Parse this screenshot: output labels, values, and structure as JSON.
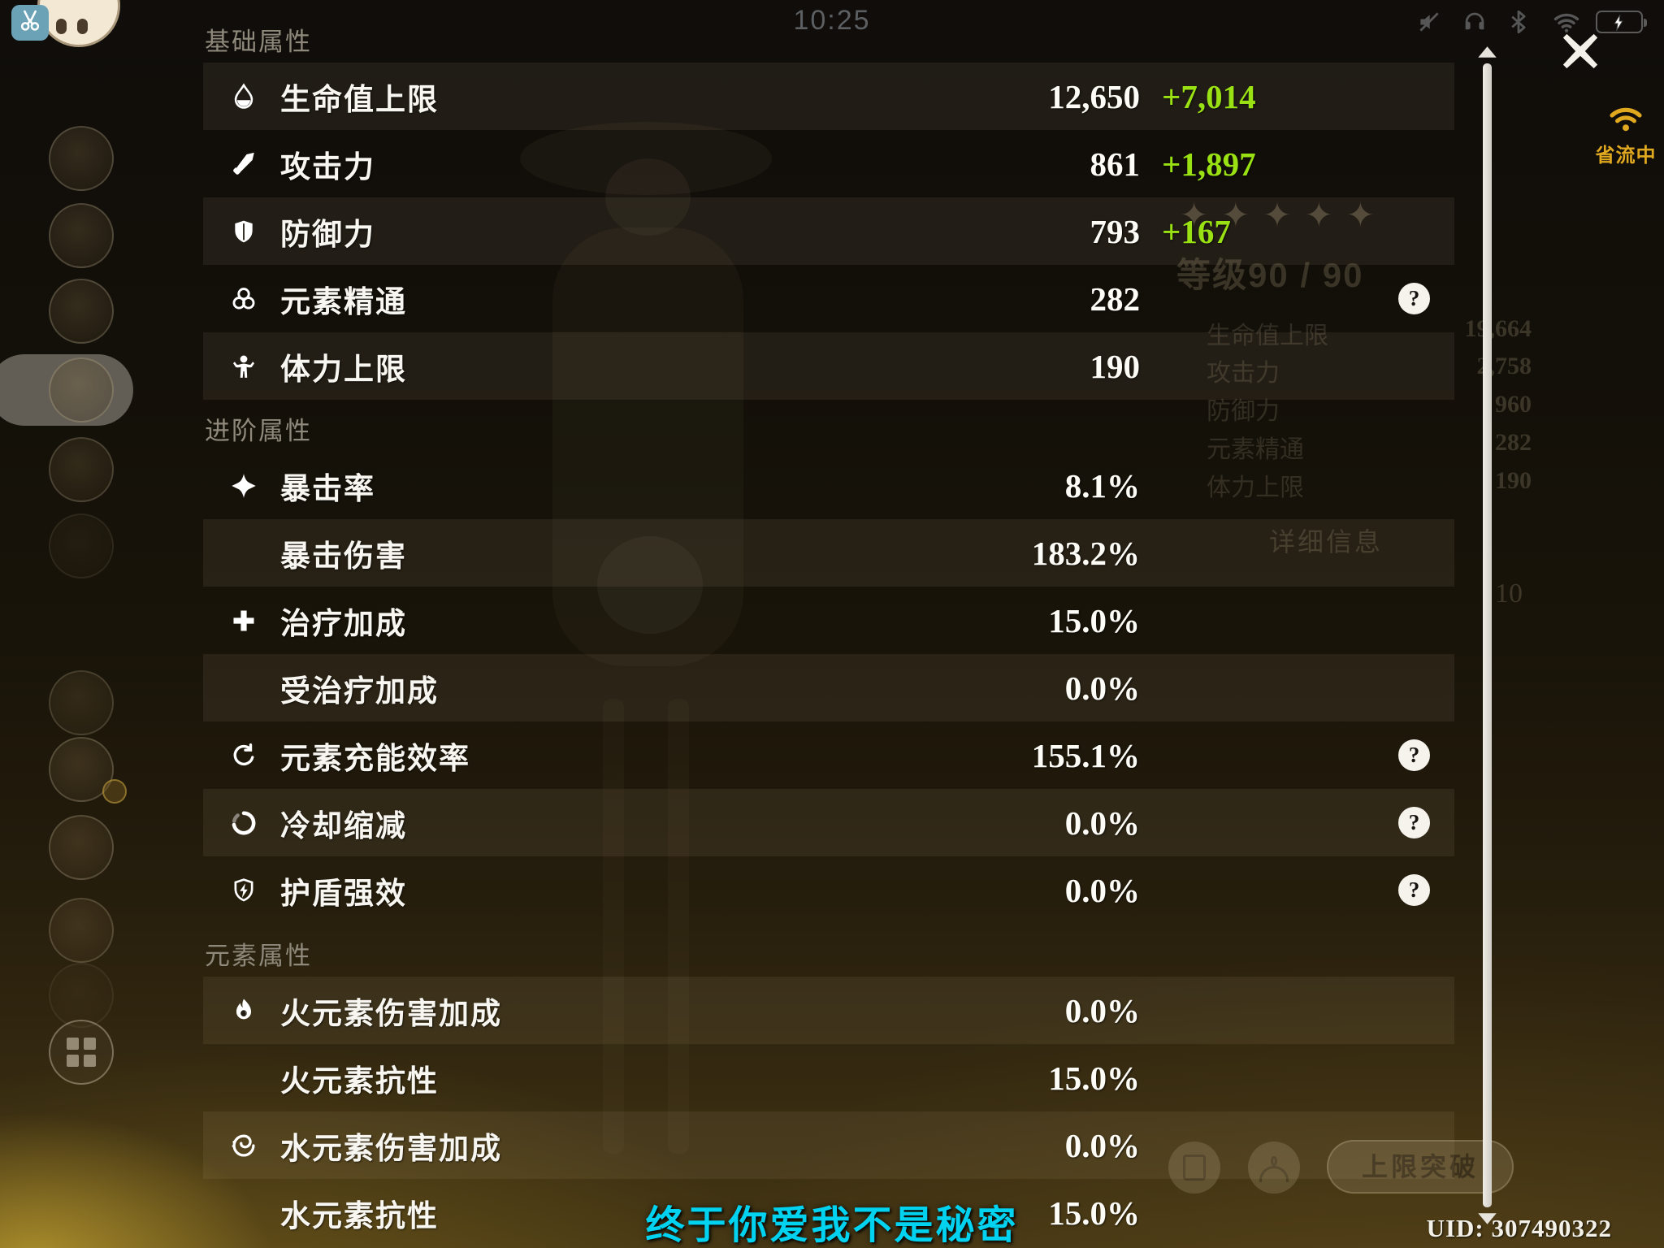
{
  "status_bar": {
    "time": "10:25",
    "icons": [
      "mute-icon",
      "headphones-icon",
      "bluetooth-icon",
      "wifi-icon",
      "battery-icon"
    ]
  },
  "helper_app": {
    "scissors_icon": "scissors-icon",
    "avatar": "floating-assistant-avatar"
  },
  "data_saver": {
    "label": "省流中",
    "icon": "wifi-icon"
  },
  "close_label": "close",
  "stats_panel": {
    "sections": [
      {
        "title": "基础属性",
        "rows": [
          {
            "icon": "hp-icon",
            "label": "生命值上限",
            "value": "12,650",
            "bonus": "+7,014",
            "help": false
          },
          {
            "icon": "atk-icon",
            "label": "攻击力",
            "value": "861",
            "bonus": "+1,897",
            "help": false
          },
          {
            "icon": "def-icon",
            "label": "防御力",
            "value": "793",
            "bonus": "+167",
            "help": false
          },
          {
            "icon": "em-icon",
            "label": "元素精通",
            "value": "282",
            "bonus": "",
            "help": true
          },
          {
            "icon": "stamina-icon",
            "label": "体力上限",
            "value": "190",
            "bonus": "",
            "help": false
          }
        ]
      },
      {
        "title": "进阶属性",
        "rows": [
          {
            "icon": "crit-rate-icon",
            "label": "暴击率",
            "value": "8.1%",
            "bonus": "",
            "help": false
          },
          {
            "icon": "",
            "label": "暴击伤害",
            "value": "183.2%",
            "bonus": "",
            "help": false
          },
          {
            "icon": "heal-icon",
            "label": "治疗加成",
            "value": "15.0%",
            "bonus": "",
            "help": false
          },
          {
            "icon": "",
            "label": "受治疗加成",
            "value": "0.0%",
            "bonus": "",
            "help": false
          },
          {
            "icon": "recharge-icon",
            "label": "元素充能效率",
            "value": "155.1%",
            "bonus": "",
            "help": true
          },
          {
            "icon": "cooldown-icon",
            "label": "冷却缩减",
            "value": "0.0%",
            "bonus": "",
            "help": true
          },
          {
            "icon": "shield-strength-icon",
            "label": "护盾强效",
            "value": "0.0%",
            "bonus": "",
            "help": true
          }
        ]
      },
      {
        "title": "元素属性",
        "rows": [
          {
            "icon": "pyro-icon",
            "label": "火元素伤害加成",
            "value": "0.0%",
            "bonus": "",
            "help": false
          },
          {
            "icon": "",
            "label": "火元素抗性",
            "value": "15.0%",
            "bonus": "",
            "help": false
          },
          {
            "icon": "hydro-icon",
            "label": "水元素伤害加成",
            "value": "0.0%",
            "bonus": "",
            "help": false
          },
          {
            "icon": "",
            "label": "水元素抗性",
            "value": "15.0%",
            "bonus": "",
            "help": false
          }
        ]
      }
    ]
  },
  "background_screen": {
    "stars": "✦✦✦✦✦",
    "level": "等级90 / 90",
    "rows": [
      {
        "label": "生命值上限",
        "value": "19,664"
      },
      {
        "label": "攻击力",
        "value": "2,758"
      },
      {
        "label": "防御力",
        "value": "960"
      },
      {
        "label": "元素精通",
        "value": "282"
      },
      {
        "label": "体力上限",
        "value": "190"
      }
    ],
    "detail_label": "详细信息",
    "extra_value": "10",
    "breakthrough_label": "上限突破"
  },
  "sidebar": {
    "slots": [
      {
        "selected": false,
        "badge": false
      },
      {
        "selected": false,
        "badge": false
      },
      {
        "selected": false,
        "badge": false
      },
      {
        "selected": true,
        "badge": false
      },
      {
        "selected": false,
        "badge": false
      },
      {
        "selected": false,
        "badge": false
      },
      {
        "selected": false,
        "badge": false
      },
      {
        "selected": false,
        "badge": true
      },
      {
        "selected": false,
        "badge": false
      },
      {
        "selected": false,
        "badge": false
      },
      {
        "selected": false,
        "badge": false
      }
    ]
  },
  "footer": {
    "subtitle": "终于你爱我不是秘密",
    "uid": "UID: 307490322"
  },
  "colors": {
    "bonus_green": "#9ae114",
    "subtitle_cyan": "#00d2f0",
    "data_saver_gold": "#dfa81f",
    "battery_green": "#3ecb50"
  }
}
